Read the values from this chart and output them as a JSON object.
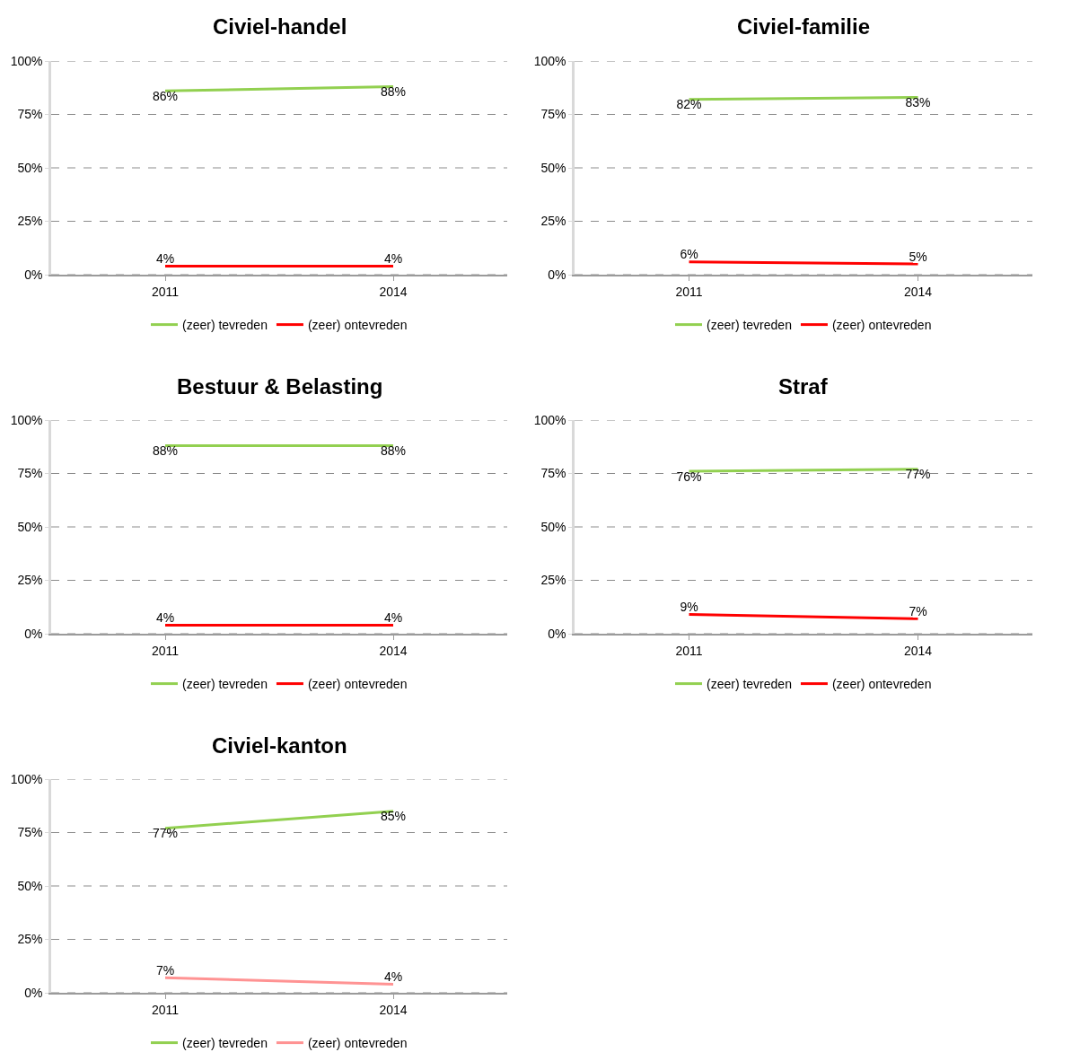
{
  "chart_data": [
    {
      "type": "line",
      "title": "Civiel-handel",
      "categories": [
        "2011",
        "2014"
      ],
      "series": [
        {
          "name": "(zeer) tevreden",
          "color": "#92d050",
          "values": [
            86,
            88
          ],
          "value_labels": [
            "86%",
            "88%"
          ]
        },
        {
          "name": "(zeer) ontevreden",
          "color": "#ff0000",
          "values": [
            4,
            4
          ],
          "value_labels": [
            "4%",
            "4%"
          ]
        }
      ],
      "ylim": [
        0,
        100
      ],
      "yticks": [
        {
          "value": 0,
          "label": "0%"
        },
        {
          "value": 25,
          "label": "25%"
        },
        {
          "value": 50,
          "label": "50%"
        },
        {
          "value": 75,
          "label": "75%"
        },
        {
          "value": 100,
          "label": "100%"
        }
      ],
      "grid": "y",
      "legend": "bottom"
    },
    {
      "type": "line",
      "title": "Civiel-familie",
      "categories": [
        "2011",
        "2014"
      ],
      "series": [
        {
          "name": "(zeer) tevreden",
          "color": "#92d050",
          "values": [
            82,
            83
          ],
          "value_labels": [
            "82%",
            "83%"
          ]
        },
        {
          "name": "(zeer) ontevreden",
          "color": "#ff0000",
          "values": [
            6,
            5
          ],
          "value_labels": [
            "6%",
            "5%"
          ]
        }
      ],
      "ylim": [
        0,
        100
      ],
      "yticks": [
        {
          "value": 0,
          "label": "0%"
        },
        {
          "value": 25,
          "label": "25%"
        },
        {
          "value": 50,
          "label": "50%"
        },
        {
          "value": 75,
          "label": "75%"
        },
        {
          "value": 100,
          "label": "100%"
        }
      ],
      "grid": "y",
      "legend": "bottom"
    },
    {
      "type": "line",
      "title": "Bestuur & Belasting",
      "categories": [
        "2011",
        "2014"
      ],
      "series": [
        {
          "name": "(zeer) tevreden",
          "color": "#92d050",
          "values": [
            88,
            88
          ],
          "value_labels": [
            "88%",
            "88%"
          ]
        },
        {
          "name": "(zeer) ontevreden",
          "color": "#ff0000",
          "values": [
            4,
            4
          ],
          "value_labels": [
            "4%",
            "4%"
          ]
        }
      ],
      "ylim": [
        0,
        100
      ],
      "yticks": [
        {
          "value": 0,
          "label": "0%"
        },
        {
          "value": 25,
          "label": "25%"
        },
        {
          "value": 50,
          "label": "50%"
        },
        {
          "value": 75,
          "label": "75%"
        },
        {
          "value": 100,
          "label": "100%"
        }
      ],
      "grid": "y",
      "legend": "bottom"
    },
    {
      "type": "line",
      "title": "Straf",
      "categories": [
        "2011",
        "2014"
      ],
      "series": [
        {
          "name": "(zeer) tevreden",
          "color": "#92d050",
          "values": [
            76,
            77
          ],
          "value_labels": [
            "76%",
            "77%"
          ]
        },
        {
          "name": "(zeer) ontevreden",
          "color": "#ff0000",
          "values": [
            9,
            7
          ],
          "value_labels": [
            "9%",
            "7%"
          ]
        }
      ],
      "ylim": [
        0,
        100
      ],
      "yticks": [
        {
          "value": 0,
          "label": "0%"
        },
        {
          "value": 25,
          "label": "25%"
        },
        {
          "value": 50,
          "label": "50%"
        },
        {
          "value": 75,
          "label": "75%"
        },
        {
          "value": 100,
          "label": "100%"
        }
      ],
      "grid": "y",
      "legend": "bottom"
    },
    {
      "type": "line",
      "title": "Civiel-kanton",
      "categories": [
        "2011",
        "2014"
      ],
      "series": [
        {
          "name": "(zeer) tevreden",
          "color": "#92d050",
          "values": [
            77,
            85
          ],
          "value_labels": [
            "77%",
            "85%"
          ]
        },
        {
          "name": "(zeer) ontevreden",
          "color": "#ff9393",
          "values": [
            7,
            4
          ],
          "value_labels": [
            "7%",
            "4%"
          ]
        }
      ],
      "ylim": [
        0,
        100
      ],
      "yticks": [
        {
          "value": 0,
          "label": "0%"
        },
        {
          "value": 25,
          "label": "25%"
        },
        {
          "value": 50,
          "label": "50%"
        },
        {
          "value": 75,
          "label": "75%"
        },
        {
          "value": 100,
          "label": "100%"
        }
      ],
      "grid": "y",
      "legend": "bottom"
    }
  ]
}
